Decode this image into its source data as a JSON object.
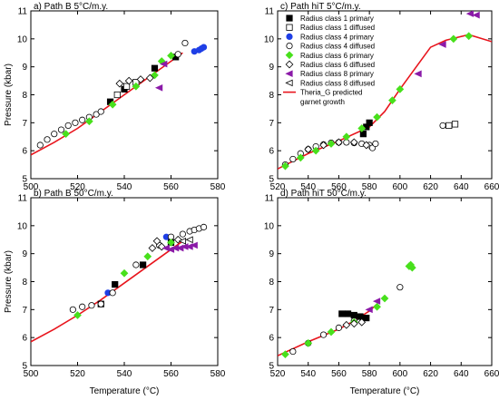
{
  "figure": {
    "shared_ylabel": "Pressure (kbar)",
    "shared_xlabel": "Temperature (°C)"
  },
  "legend": {
    "items": [
      {
        "label": "Radius class 1 primary",
        "marker": "square",
        "fill": true,
        "color": "#000000"
      },
      {
        "label": "Radius class 1 diffused",
        "marker": "square",
        "fill": false,
        "color": "#000000"
      },
      {
        "label": "Radius class 4 primary",
        "marker": "circle",
        "fill": true,
        "color": "#1f3fe6"
      },
      {
        "label": "Radius class 4 diffused",
        "marker": "circle",
        "fill": false,
        "color": "#000000"
      },
      {
        "label": "Radius class 6 primary",
        "marker": "diamond",
        "fill": true,
        "color": "#48e01c"
      },
      {
        "label": "Radius class 6 diffused",
        "marker": "diamond",
        "fill": false,
        "color": "#000000"
      },
      {
        "label": "Radius class 8 primary",
        "marker": "triangle-left",
        "fill": true,
        "color": "#8b1aa8"
      },
      {
        "label": "Radius class 8 diffused",
        "marker": "triangle-left",
        "fill": false,
        "color": "#000000"
      },
      {
        "label": "Theria_G predicted\ngarnet growth",
        "marker": "line",
        "fill": false,
        "color": "#e8141c"
      }
    ]
  },
  "chart_data": [
    {
      "type": "scatter",
      "title": "a) Path B 5°C/m.y.",
      "ylabel": "Pressure (kbar)",
      "xlabel": "",
      "xlim": [
        500,
        580
      ],
      "ylim": [
        5,
        11
      ],
      "xticks": [
        500,
        520,
        540,
        560,
        580
      ],
      "yticks": [
        5,
        6,
        7,
        8,
        9,
        10,
        11
      ],
      "show_xlabels": true,
      "show_ylabels": true,
      "series": [
        {
          "name": "Theria_G predicted garnet growth",
          "mode": "line",
          "color": "#e8141c",
          "x": [
            500,
            510,
            520,
            530,
            540,
            550,
            560,
            565
          ],
          "y": [
            5.85,
            6.3,
            6.8,
            7.4,
            8.0,
            8.6,
            9.2,
            9.5
          ]
        },
        {
          "name": "Radius class 1 primary",
          "mode": "marker",
          "marker": "square",
          "fill": true,
          "color": "#000000",
          "x": [
            534,
            540,
            553,
            562
          ],
          "y": [
            7.75,
            8.2,
            8.95,
            9.35
          ]
        },
        {
          "name": "Radius class 1 diffused",
          "mode": "marker",
          "marker": "square",
          "fill": false,
          "color": "#000000",
          "x": [
            537,
            541,
            545
          ],
          "y": [
            8.0,
            8.3,
            8.45
          ]
        },
        {
          "name": "Radius class 4 primary",
          "mode": "marker",
          "marker": "circle",
          "fill": true,
          "color": "#1f3fe6",
          "x": [
            570,
            572,
            573,
            574
          ],
          "y": [
            9.55,
            9.6,
            9.65,
            9.7
          ]
        },
        {
          "name": "Radius class 4 diffused",
          "mode": "marker",
          "marker": "circle",
          "fill": false,
          "color": "#000000",
          "x": [
            504,
            507,
            510,
            513,
            516,
            519,
            522,
            525,
            528,
            530,
            563,
            566
          ],
          "y": [
            6.2,
            6.4,
            6.6,
            6.75,
            6.9,
            7.0,
            7.1,
            7.2,
            7.3,
            7.4,
            9.45,
            9.85
          ]
        },
        {
          "name": "Radius class 6 primary",
          "mode": "marker",
          "marker": "diamond",
          "fill": true,
          "color": "#48e01c",
          "x": [
            515,
            525,
            535,
            545,
            553,
            556,
            560
          ],
          "y": [
            6.6,
            7.05,
            7.65,
            8.3,
            8.7,
            9.2,
            9.4
          ]
        },
        {
          "name": "Radius class 6 diffused",
          "mode": "marker",
          "marker": "diamond",
          "fill": false,
          "color": "#000000",
          "x": [
            538,
            542,
            547,
            551
          ],
          "y": [
            8.4,
            8.5,
            8.55,
            8.6
          ]
        },
        {
          "name": "Radius class 8 primary",
          "mode": "marker",
          "marker": "triangle-left",
          "fill": true,
          "color": "#8b1aa8",
          "x": [
            555,
            557
          ],
          "y": [
            8.25,
            9.1
          ]
        }
      ]
    },
    {
      "type": "scatter",
      "title": "c) Path hiT 5°C/m.y.",
      "ylabel": "",
      "xlabel": "",
      "xlim": [
        520,
        660
      ],
      "ylim": [
        5,
        11
      ],
      "xticks": [
        520,
        540,
        560,
        580,
        600,
        620,
        640,
        660
      ],
      "yticks": [
        5,
        6,
        7,
        8,
        9,
        10,
        11
      ],
      "show_xlabels": true,
      "show_ylabels": true,
      "series": [
        {
          "name": "Theria_G predicted garnet growth",
          "mode": "line",
          "color": "#e8141c",
          "x": [
            520,
            540,
            560,
            580,
            590,
            600,
            610,
            620,
            630,
            645,
            660
          ],
          "y": [
            5.35,
            5.9,
            6.35,
            6.85,
            7.4,
            8.2,
            8.95,
            9.7,
            9.95,
            10.15,
            9.9
          ]
        },
        {
          "name": "Radius class 1 primary",
          "mode": "marker",
          "marker": "square",
          "fill": true,
          "color": "#000000",
          "x": [
            576,
            578,
            580
          ],
          "y": [
            6.6,
            6.85,
            7.0
          ]
        },
        {
          "name": "Radius class 1 diffused",
          "mode": "marker",
          "marker": "square",
          "fill": false,
          "color": "#000000",
          "x": [
            632,
            636
          ],
          "y": [
            6.9,
            6.95
          ]
        },
        {
          "name": "Radius class 4 diffused",
          "mode": "marker",
          "marker": "circle",
          "fill": false,
          "color": "#000000",
          "x": [
            525,
            530,
            535,
            540,
            545,
            550,
            555,
            560,
            565,
            570,
            575,
            580,
            582,
            584,
            628
          ],
          "y": [
            5.5,
            5.7,
            5.9,
            6.05,
            6.15,
            6.22,
            6.28,
            6.3,
            6.3,
            6.28,
            6.25,
            6.2,
            6.1,
            6.25,
            6.9
          ]
        },
        {
          "name": "Radius class 6 primary",
          "mode": "marker",
          "marker": "diamond",
          "fill": true,
          "color": "#48e01c",
          "x": [
            525,
            535,
            545,
            555,
            565,
            575,
            585,
            595,
            600,
            635,
            645
          ],
          "y": [
            5.45,
            5.75,
            6.0,
            6.25,
            6.5,
            6.8,
            7.2,
            7.8,
            8.2,
            10.0,
            10.1
          ]
        },
        {
          "name": "Radius class 6 diffused",
          "mode": "marker",
          "marker": "diamond",
          "fill": false,
          "color": "#000000",
          "x": [
            540,
            550,
            560,
            570,
            578
          ],
          "y": [
            6.05,
            6.2,
            6.3,
            6.3,
            6.2
          ]
        },
        {
          "name": "Radius class 8 primary",
          "mode": "marker",
          "marker": "triangle-left",
          "fill": true,
          "color": "#8b1aa8",
          "x": [
            612,
            628,
            646,
            650
          ],
          "y": [
            8.75,
            9.8,
            10.9,
            10.85
          ]
        }
      ]
    },
    {
      "type": "scatter",
      "title": "b) Path B 50°C/m.y.",
      "ylabel": "Pressure (kbar)",
      "xlabel": "Temperature (°C)",
      "xlim": [
        500,
        580
      ],
      "ylim": [
        5,
        11
      ],
      "xticks": [
        500,
        520,
        540,
        560,
        580
      ],
      "yticks": [
        5,
        6,
        7,
        8,
        9,
        10,
        11
      ],
      "show_xlabels": true,
      "show_ylabels": true,
      "series": [
        {
          "name": "Theria_G predicted garnet growth",
          "mode": "line",
          "color": "#e8141c",
          "x": [
            500,
            510,
            520,
            530,
            540,
            550,
            560,
            565
          ],
          "y": [
            5.85,
            6.3,
            6.8,
            7.35,
            7.95,
            8.55,
            9.15,
            9.45
          ]
        },
        {
          "name": "Radius class 1 primary",
          "mode": "marker",
          "marker": "square",
          "fill": true,
          "color": "#000000",
          "x": [
            530,
            536,
            548,
            560
          ],
          "y": [
            7.2,
            7.9,
            8.6,
            9.4
          ]
        },
        {
          "name": "Radius class 4 primary",
          "mode": "marker",
          "marker": "circle",
          "fill": true,
          "color": "#1f3fe6",
          "x": [
            533,
            558
          ],
          "y": [
            7.6,
            9.6
          ]
        },
        {
          "name": "Radius class 4 diffused",
          "mode": "marker",
          "marker": "circle",
          "fill": false,
          "color": "#000000",
          "x": [
            518,
            522,
            526,
            530,
            535,
            545,
            555,
            560,
            565,
            568,
            570,
            572,
            574
          ],
          "y": [
            7.0,
            7.1,
            7.15,
            7.2,
            7.6,
            8.6,
            9.3,
            9.6,
            9.7,
            9.8,
            9.85,
            9.9,
            9.95
          ]
        },
        {
          "name": "Radius class 6 primary",
          "mode": "marker",
          "marker": "diamond",
          "fill": true,
          "color": "#48e01c",
          "x": [
            520,
            540,
            550,
            560
          ],
          "y": [
            6.8,
            8.3,
            8.9,
            9.4
          ]
        },
        {
          "name": "Radius class 6 diffused",
          "mode": "marker",
          "marker": "diamond",
          "fill": false,
          "color": "#000000",
          "x": [
            552,
            554,
            556,
            563
          ],
          "y": [
            9.2,
            9.45,
            9.25,
            9.5
          ]
        },
        {
          "name": "Radius class 8 primary",
          "mode": "marker",
          "marker": "triangle-left",
          "fill": true,
          "color": "#8b1aa8",
          "x": [
            558,
            560,
            562,
            564,
            566,
            568,
            570
          ],
          "y": [
            9.2,
            9.15,
            9.2,
            9.2,
            9.25,
            9.25,
            9.3
          ]
        },
        {
          "name": "Radius class 8 diffused",
          "mode": "marker",
          "marker": "triangle-left",
          "fill": false,
          "color": "#000000",
          "x": [
            565,
            568
          ],
          "y": [
            9.45,
            9.5
          ]
        }
      ]
    },
    {
      "type": "scatter",
      "title": "d) Path hiT 50°C/m.y.",
      "ylabel": "",
      "xlabel": "Temperature (°C)",
      "xlim": [
        520,
        660
      ],
      "ylim": [
        5,
        11
      ],
      "xticks": [
        520,
        540,
        560,
        580,
        600,
        620,
        640,
        660
      ],
      "yticks": [
        5,
        6,
        7,
        8,
        9,
        10,
        11
      ],
      "show_xlabels": true,
      "show_ylabels": true,
      "series": [
        {
          "name": "Theria_G predicted garnet growth",
          "mode": "line",
          "color": "#e8141c",
          "x": [
            520,
            540,
            560,
            570,
            580,
            585
          ],
          "y": [
            5.35,
            5.85,
            6.3,
            6.6,
            6.95,
            7.2
          ]
        },
        {
          "name": "Radius class 1 primary",
          "mode": "marker",
          "marker": "square",
          "fill": true,
          "color": "#000000",
          "x": [
            562,
            566,
            570,
            574,
            578
          ],
          "y": [
            6.85,
            6.85,
            6.8,
            6.75,
            6.7
          ]
        },
        {
          "name": "Radius class 4 diffused",
          "mode": "marker",
          "marker": "circle",
          "fill": false,
          "color": "#000000",
          "x": [
            530,
            540,
            550,
            560,
            570,
            600
          ],
          "y": [
            5.5,
            5.8,
            6.1,
            6.35,
            6.6,
            7.8
          ]
        },
        {
          "name": "Radius class 6 primary",
          "mode": "marker",
          "marker": "diamond",
          "fill": true,
          "color": "#48e01c",
          "x": [
            525,
            540,
            555,
            570,
            585,
            590,
            606,
            607,
            608
          ],
          "y": [
            5.4,
            5.8,
            6.2,
            6.55,
            7.1,
            7.4,
            8.55,
            8.6,
            8.5
          ]
        },
        {
          "name": "Radius class 6 diffused",
          "mode": "marker",
          "marker": "diamond",
          "fill": false,
          "color": "#000000",
          "x": [
            565,
            570,
            575
          ],
          "y": [
            6.45,
            6.5,
            6.55
          ]
        },
        {
          "name": "Radius class 8 primary",
          "mode": "marker",
          "marker": "triangle-left",
          "fill": true,
          "color": "#8b1aa8",
          "x": [
            580,
            585
          ],
          "y": [
            7.0,
            7.3
          ]
        }
      ]
    }
  ]
}
